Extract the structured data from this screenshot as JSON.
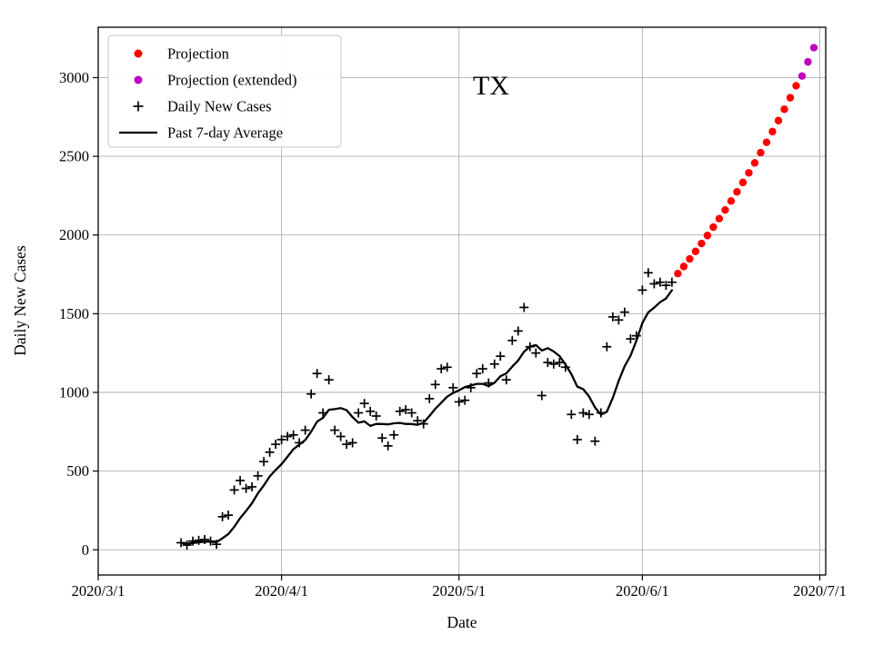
{
  "figure": {
    "title": "TX",
    "background": "#ffffff"
  },
  "legend": {
    "position": "upper-left",
    "items": [
      {
        "label": "Projection",
        "marker": "dot",
        "color": "#ff0000"
      },
      {
        "label": "Projection (extended)",
        "marker": "dot",
        "color": "#bf00bf"
      },
      {
        "label": "Daily New Cases",
        "marker": "plus",
        "color": "#000000"
      },
      {
        "label": "Past 7-day Average",
        "marker": "line",
        "color": "#000000"
      }
    ]
  },
  "chart_data": {
    "type": "line",
    "title": "TX",
    "xlabel": "Date",
    "ylabel": "Daily New Cases",
    "grid": true,
    "grid_color": "#b0b0b0",
    "xlim": [
      "2020-03-01",
      "2020-07-02"
    ],
    "ylim": [
      -160,
      3320
    ],
    "x_ticks": [
      {
        "label": "2020/3/1",
        "date": "2020-03-01"
      },
      {
        "label": "2020/4/1",
        "date": "2020-04-01"
      },
      {
        "label": "2020/5/1",
        "date": "2020-05-01"
      },
      {
        "label": "2020/6/1",
        "date": "2020-06-01"
      },
      {
        "label": "2020/7/1",
        "date": "2020-07-01"
      }
    ],
    "y_ticks": [
      0,
      500,
      1000,
      1500,
      2000,
      2500,
      3000
    ],
    "series": [
      {
        "name": "Daily New Cases",
        "style": "plus",
        "color": "#000000",
        "start_date": "2020-03-15",
        "step_days": 1,
        "values": [
          45,
          30,
          55,
          60,
          65,
          55,
          35,
          210,
          220,
          380,
          440,
          390,
          400,
          470,
          560,
          620,
          670,
          700,
          720,
          730,
          680,
          760,
          990,
          1120,
          870,
          1080,
          760,
          720,
          670,
          680,
          870,
          930,
          880,
          850,
          710,
          660,
          730,
          880,
          890,
          870,
          820,
          800,
          960,
          1050,
          1150,
          1160,
          1030,
          940,
          950,
          1030,
          1120,
          1150,
          1060,
          1180,
          1230,
          1080,
          1330,
          1390,
          1540,
          1290,
          1250,
          980,
          1190,
          1180,
          1190,
          1160,
          860,
          700,
          870,
          860,
          690,
          870,
          1290,
          1480,
          1460,
          1510,
          1340,
          1360,
          1650,
          1760,
          1690,
          1700,
          1680,
          1700
        ]
      },
      {
        "name": "Past 7-day Average",
        "style": "line",
        "color": "#000000",
        "start_date": "2020-03-15",
        "step_days": 1,
        "values": [
          45,
          38,
          43,
          48,
          51,
          52,
          49,
          73,
          100,
          146,
          201,
          247,
          296,
          359,
          409,
          466,
          507,
          544,
          591,
          639,
          669,
          697,
          750,
          814,
          839,
          890,
          894,
          900,
          887,
          843,
          807,
          816,
          787,
          800,
          799,
          797,
          804,
          806,
          800,
          799,
          794,
          807,
          850,
          896,
          934,
          973,
          996,
          1013,
          1034,
          1044,
          1054,
          1054,
          1040,
          1061,
          1103,
          1121,
          1164,
          1203,
          1259,
          1291,
          1301,
          1266,
          1281,
          1260,
          1231,
          1177,
          1116,
          1037,
          1021,
          974,
          904,
          859,
          877,
          966,
          1074,
          1166,
          1234,
          1330,
          1441,
          1509,
          1539,
          1573,
          1597,
          1649
        ]
      },
      {
        "name": "Projection",
        "style": "dots",
        "color": "#ff0000",
        "start_date": "2020-06-07",
        "step_days": 1,
        "values": [
          1755,
          1800,
          1848,
          1896,
          1946,
          1997,
          2050,
          2104,
          2159,
          2216,
          2274,
          2334,
          2395,
          2458,
          2523,
          2589,
          2657,
          2727,
          2799,
          2872,
          2948
        ]
      },
      {
        "name": "Projection (extended)",
        "style": "dots",
        "color": "#bf00bf",
        "start_date": "2020-06-28",
        "step_days": 1,
        "values": [
          3010,
          3100,
          3190
        ]
      }
    ]
  }
}
